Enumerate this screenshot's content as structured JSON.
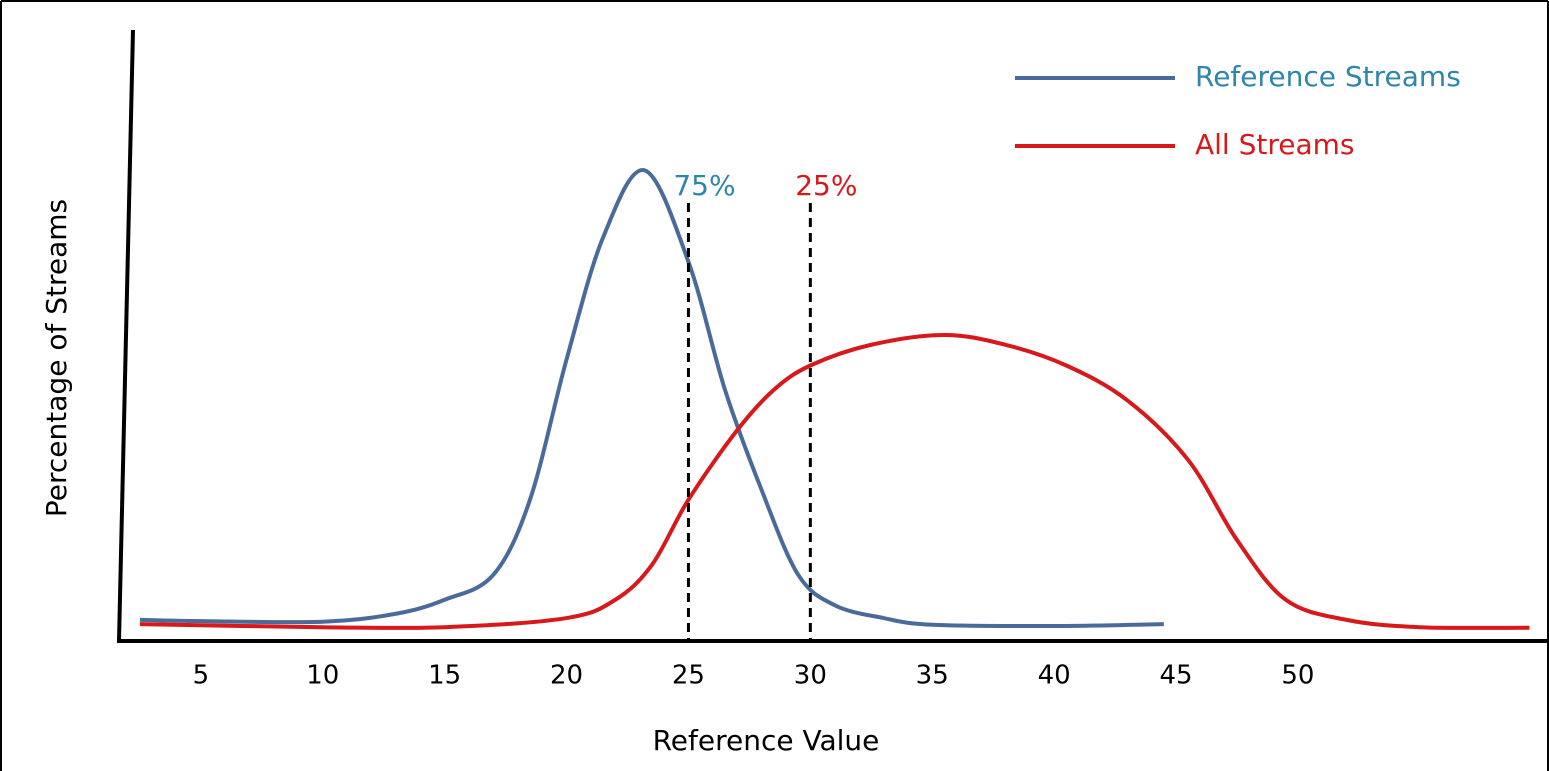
{
  "chart_data": {
    "type": "line",
    "x_label": "Reference Value",
    "y_label": "Percentage of Streams",
    "xlim": [
      1.6,
      60.3
    ],
    "ylim": [
      0,
      100
    ],
    "xticks": [
      5,
      10,
      15,
      20,
      25,
      30,
      35,
      40,
      45,
      50
    ],
    "legend": "upper right",
    "series": [
      {
        "name": "Reference Streams",
        "color": "#4a6b9a",
        "label_color": "#2e86a8",
        "x": [
          2.5,
          5,
          10,
          13,
          15,
          17,
          18.5,
          20,
          21.5,
          23.2,
          25,
          26.5,
          28,
          29.5,
          31,
          33,
          35,
          40,
          44.5
        ],
        "values": [
          3.3,
          3.1,
          3.0,
          4.3,
          6.6,
          10.7,
          23,
          46,
          66,
          77,
          62,
          41,
          24.6,
          10.7,
          5.7,
          3.6,
          2.5,
          2.3,
          2.6
        ]
      },
      {
        "name": "All Streams",
        "color": "#d7191c",
        "label_color": "#d7191c",
        "x": [
          2.5,
          10,
          15,
          20,
          22,
          23.5,
          25,
          27,
          28.5,
          30,
          32.5,
          35.5,
          38,
          40.5,
          43,
          45.5,
          47.5,
          49.5,
          52,
          55,
          59.5
        ],
        "values": [
          2.6,
          2.1,
          2.1,
          3.6,
          6.6,
          12.3,
          23,
          34.4,
          41,
          45,
          48.4,
          50,
          48.4,
          45,
          39.3,
          29.5,
          16.4,
          6.6,
          3.3,
          2.1,
          2.0
        ]
      }
    ],
    "markers": [
      {
        "x": 25,
        "label": "75%",
        "color": "#2e86a8"
      },
      {
        "x": 30,
        "label": "25%",
        "color": "#d7191c"
      }
    ]
  }
}
